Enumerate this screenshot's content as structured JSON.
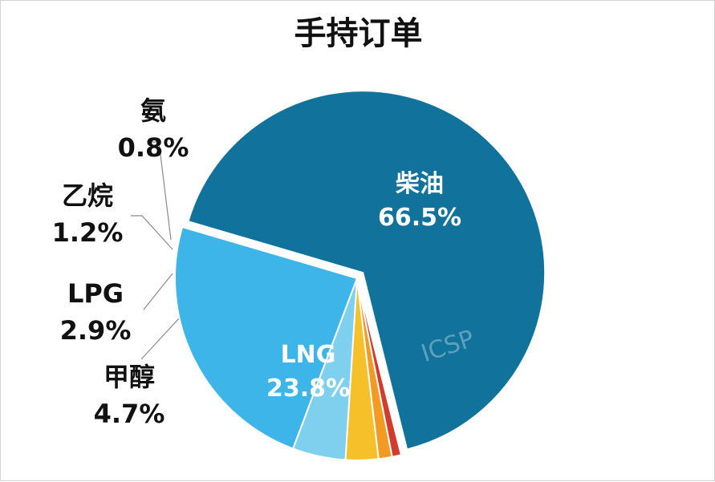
{
  "chart_data": {
    "type": "pie",
    "title": "手持订单",
    "slices": [
      {
        "label": "柴油",
        "value": 66.5,
        "value_label": "66.5%",
        "color": "#11729c",
        "label_style": "inside",
        "exploded": true
      },
      {
        "label": "LNG",
        "value": 23.8,
        "value_label": "23.8%",
        "color": "#3db5e8",
        "label_style": "inside",
        "exploded": false
      },
      {
        "label": "甲醇",
        "value": 4.7,
        "value_label": "4.7%",
        "color": "#7fd0ef",
        "label_style": "outside",
        "exploded": false
      },
      {
        "label": "LPG",
        "value": 2.9,
        "value_label": "2.9%",
        "color": "#f6c02a",
        "label_style": "outside",
        "exploded": false
      },
      {
        "label": "乙烷",
        "value": 1.2,
        "value_label": "1.2%",
        "color": "#f39a24",
        "label_style": "outside",
        "exploded": false
      },
      {
        "label": "氨",
        "value": 0.8,
        "value_label": "0.8%",
        "color": "#d23b2e",
        "label_style": "outside",
        "exploded": false
      }
    ],
    "watermark": "ICSP"
  }
}
